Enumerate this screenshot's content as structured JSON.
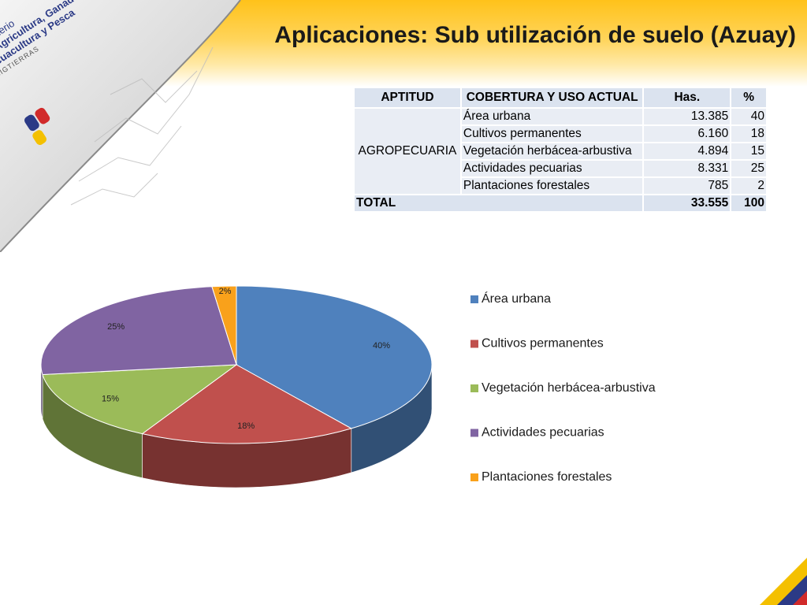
{
  "slide": {
    "title": "Aplicaciones: Sub utilización de suelo (Azuay)",
    "logo": {
      "line1": "Ministerio",
      "line2": "de Agricultura, Ganadería,",
      "line3": "Acuacultura y Pesca",
      "line4": "SIGTIERRAS"
    }
  },
  "table": {
    "headers": [
      "APTITUD",
      "COBERTURA Y USO ACTUAL",
      "Has.",
      "%"
    ],
    "aptitud": "AGROPECUARIA",
    "rows": [
      {
        "cobertura": "Área urbana",
        "has": "13.385",
        "pct": "40"
      },
      {
        "cobertura": "Cultivos permanentes",
        "has": "6.160",
        "pct": "18"
      },
      {
        "cobertura": "Vegetación herbácea-arbustiva",
        "has": "4.894",
        "pct": "15"
      },
      {
        "cobertura": "Actividades pecuarias",
        "has": "8.331",
        "pct": "25"
      },
      {
        "cobertura": "Plantaciones forestales",
        "has": "785",
        "pct": "2"
      }
    ],
    "total": {
      "label": "TOTAL",
      "has": "33.555",
      "pct": "100"
    }
  },
  "chart_data": {
    "type": "pie",
    "categories": [
      "Área urbana",
      "Cultivos permanentes",
      "Vegetación herbácea-arbustiva",
      "Actividades pecuarias",
      "Plantaciones forestales"
    ],
    "values": [
      40,
      18,
      15,
      25,
      2
    ],
    "data_labels": [
      "40%",
      "18%",
      "15%",
      "25%",
      "2%"
    ],
    "colors": [
      "#4f81bd",
      "#c0504d",
      "#9bbb59",
      "#8064a2",
      "#f9a11b"
    ],
    "legend_position": "right",
    "style": "3d"
  },
  "colors": {
    "banner": "#ffc21a",
    "table_header": "#dbe3ef",
    "table_cell": "#e9edf4"
  }
}
